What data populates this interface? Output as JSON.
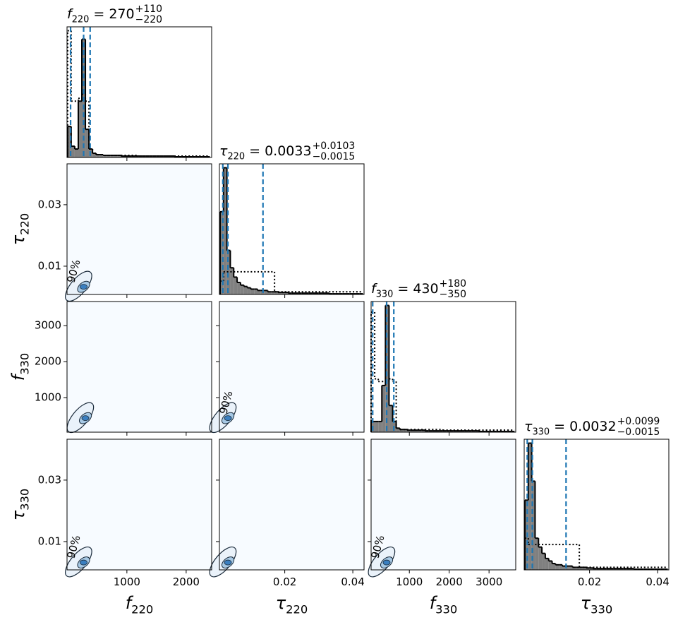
{
  "chart_data": {
    "type": "corner",
    "parameters": [
      {
        "symbol": "f",
        "sub": "220",
        "main": " = 270",
        "upper": "+110",
        "lower": "−220",
        "quantiles": [
          50,
          270,
          380
        ],
        "lim": [
          -10,
          2430
        ],
        "xticks": [
          1000,
          2000
        ],
        "bins": [
          0,
          60,
          120,
          180,
          240,
          300,
          360,
          420,
          480,
          540,
          600,
          660,
          720,
          780,
          840,
          900,
          960,
          1020,
          1080,
          1140,
          1200,
          1260,
          1320,
          1380,
          1440,
          1500,
          1560,
          1620,
          1680,
          1740,
          1800,
          1860,
          1920,
          1980,
          2040,
          2100,
          2160,
          2220,
          2280,
          2340,
          2400
        ],
        "hist": [
          22,
          8,
          6,
          40,
          84,
          20,
          6,
          3,
          2,
          2,
          1.5,
          1.5,
          1.5,
          1.5,
          1.5,
          1,
          1,
          1,
          1,
          1,
          1,
          1,
          1,
          1,
          1,
          1,
          1,
          1,
          1,
          1,
          0.5,
          0.5,
          0.5,
          0.5,
          0.5,
          0.5,
          0.5,
          0.5,
          0.5,
          0.5
        ],
        "hist_prior": [
          90,
          40,
          40,
          42,
          45,
          40,
          6,
          3,
          2,
          2,
          1.5,
          1.5,
          1.5,
          1.5,
          1.5,
          1.5,
          1.5,
          1.5,
          1.5,
          1.5,
          1,
          1,
          1,
          1,
          1,
          1,
          1,
          1,
          1,
          1,
          1,
          1,
          1,
          1,
          1,
          1,
          1,
          1,
          1,
          1
        ]
      },
      {
        "symbol": "τ",
        "sub": "220",
        "main": " = 0.0033",
        "upper": "+0.0103",
        "lower": "−0.0015",
        "quantiles": [
          0.0018,
          0.0033,
          0.0136
        ],
        "lim": [
          0.0008,
          0.0433
        ],
        "xticks": [
          0.02,
          0.04
        ],
        "yticks": [
          0.01,
          0.03
        ],
        "bins": [
          0.001,
          0.002,
          0.003,
          0.004,
          0.005,
          0.006,
          0.007,
          0.008,
          0.009,
          0.01,
          0.011,
          0.012,
          0.013,
          0.014,
          0.015,
          0.016,
          0.017,
          0.018,
          0.019,
          0.02,
          0.021,
          0.022,
          0.023,
          0.024,
          0.025,
          0.026,
          0.027,
          0.028,
          0.029,
          0.03,
          0.031,
          0.032,
          0.033,
          0.034,
          0.035,
          0.036,
          0.037,
          0.038,
          0.039,
          0.04,
          0.041,
          0.042,
          0.043
        ],
        "hist": [
          62,
          95,
          33,
          20,
          13,
          9,
          7,
          6,
          5,
          4,
          4,
          3,
          3,
          3,
          2,
          2,
          2,
          1.5,
          1.5,
          1.5,
          1,
          1,
          1,
          1,
          1,
          1,
          1,
          1,
          1,
          1,
          1,
          1,
          0.5,
          0.5,
          0.5,
          0.5,
          0.5,
          0.5,
          0.5,
          0.5,
          0.5,
          0.5
        ],
        "hist_prior": [
          10,
          17,
          17,
          17,
          17,
          17,
          17,
          17,
          17,
          17,
          17,
          17,
          17,
          17,
          17,
          17,
          2,
          2,
          2,
          2,
          2,
          2,
          2,
          2,
          2,
          2,
          2,
          2,
          2,
          2,
          2,
          2,
          2,
          2,
          2,
          2,
          2,
          2,
          2,
          2,
          2,
          2
        ]
      },
      {
        "symbol": "f",
        "sub": "330",
        "main": " = 430",
        "upper": "+180",
        "lower": "−350",
        "quantiles": [
          80,
          430,
          610
        ],
        "lim": [
          40,
          3670
        ],
        "xticks": [
          1000,
          2000,
          3000
        ],
        "yticks": [
          1000,
          2000,
          3000
        ],
        "bins": [
          40,
          130,
          220,
          310,
          400,
          490,
          580,
          670,
          760,
          850,
          940,
          1030,
          1120,
          1210,
          1300,
          1390,
          1480,
          1570,
          1660,
          1750,
          1840,
          1930,
          2020,
          2110,
          2200,
          2290,
          2380,
          2470,
          2560,
          2650,
          2740,
          2830,
          2920,
          3010,
          3100,
          3190,
          3280,
          3370,
          3460,
          3550,
          3640
        ],
        "hist": [
          8,
          8,
          8,
          35,
          95,
          20,
          8,
          3,
          2,
          2,
          1.5,
          1.5,
          1.5,
          1.5,
          1.5,
          1,
          1,
          1,
          1,
          1,
          1,
          1,
          1,
          1,
          1,
          1,
          1,
          1,
          1,
          1,
          0.5,
          0.5,
          0.5,
          0.5,
          0.5,
          0.5,
          0.5,
          0.5,
          0.5,
          0.5
        ],
        "hist_prior": [
          90,
          40,
          38,
          38,
          38,
          40,
          38,
          3,
          2,
          2,
          2,
          2,
          2,
          2,
          2,
          2,
          2,
          2,
          2,
          2,
          1.5,
          1.5,
          1.5,
          1.5,
          1.5,
          1.5,
          1.5,
          1.5,
          1.5,
          1.5,
          1.5,
          1.5,
          1.5,
          1.5,
          1.5,
          1.5,
          1.5,
          1.5,
          1.5,
          1.5
        ]
      },
      {
        "symbol": "τ",
        "sub": "330",
        "main": " = 0.0032",
        "upper": "+0.0099",
        "lower": "−0.0015",
        "quantiles": [
          0.0017,
          0.0032,
          0.0131
        ],
        "lim": [
          0.0008,
          0.0433
        ],
        "xticks": [
          0.02,
          0.04
        ],
        "yticks": [
          0.01,
          0.03
        ],
        "bins": [
          0.001,
          0.002,
          0.003,
          0.004,
          0.005,
          0.006,
          0.007,
          0.008,
          0.009,
          0.01,
          0.011,
          0.012,
          0.013,
          0.014,
          0.015,
          0.016,
          0.017,
          0.018,
          0.019,
          0.02,
          0.021,
          0.022,
          0.023,
          0.024,
          0.025,
          0.026,
          0.027,
          0.028,
          0.029,
          0.03,
          0.031,
          0.032,
          0.033,
          0.034,
          0.035,
          0.036,
          0.037,
          0.038,
          0.039,
          0.04,
          0.041,
          0.042,
          0.043
        ],
        "hist": [
          55,
          100,
          70,
          25,
          18,
          13,
          9,
          7,
          5,
          4,
          4,
          3,
          3,
          3,
          2,
          2,
          2,
          2,
          1.5,
          1.5,
          1,
          1,
          1,
          1,
          1,
          1,
          1,
          1,
          1,
          1,
          1,
          1,
          0.5,
          0.5,
          0.5,
          0.5,
          0.5,
          0.5,
          0.5,
          0.5,
          0.5,
          0.5
        ],
        "hist_prior": [
          25,
          20,
          20,
          20,
          20,
          20,
          20,
          20,
          20,
          20,
          20,
          20,
          20,
          20,
          20,
          20,
          2,
          2,
          2,
          2,
          2,
          2,
          2,
          2,
          2,
          2,
          2,
          2,
          2,
          2,
          2,
          2,
          2,
          2,
          2,
          2,
          2,
          2,
          2,
          2,
          2,
          2
        ]
      }
    ],
    "panels": [
      {
        "x": 0,
        "y": 1,
        "peak": [
          270,
          0.0033
        ],
        "label": "90%"
      },
      {
        "x": 0,
        "y": 2,
        "peak": [
          300,
          430
        ]
      },
      {
        "x": 1,
        "y": 2,
        "peak": [
          0.0033,
          430
        ],
        "label": "90%"
      },
      {
        "x": 0,
        "y": 3,
        "peak": [
          270,
          0.0032
        ],
        "label": "90%"
      },
      {
        "x": 1,
        "y": 3,
        "peak": [
          0.0033,
          0.0032
        ]
      },
      {
        "x": 2,
        "y": 3,
        "peak": [
          430,
          0.0032
        ],
        "label": "90%"
      }
    ],
    "hist_color": "#808080",
    "quantile_color": "#1f77b4",
    "panel_color": "#f7fbff",
    "contour_color": "#3a7fc0"
  }
}
